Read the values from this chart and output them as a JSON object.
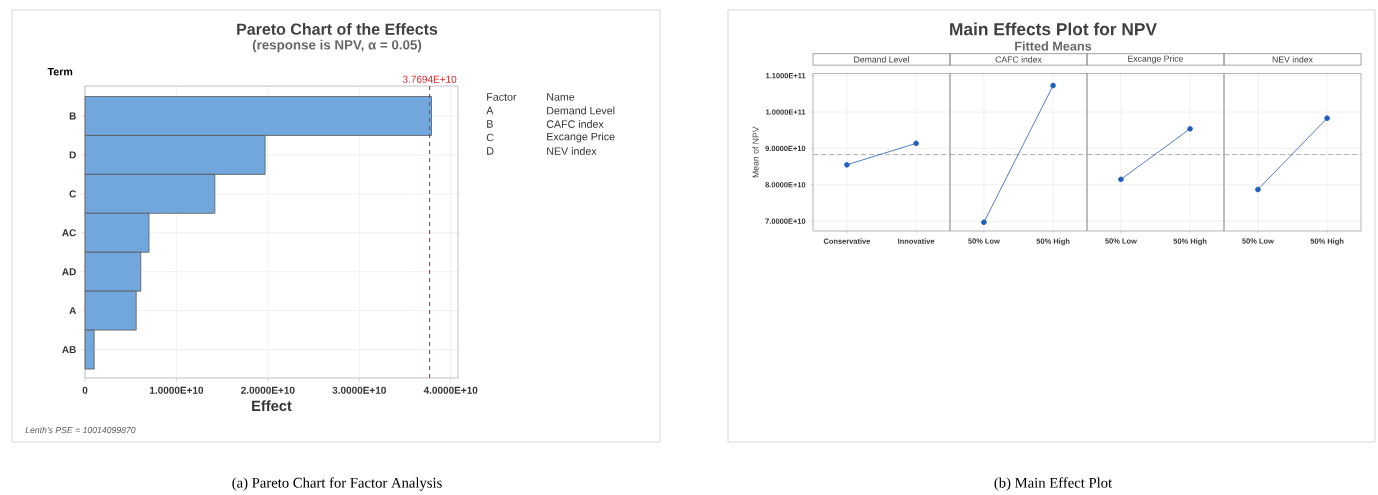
{
  "chart_data": [
    {
      "type": "bar",
      "orientation": "horizontal",
      "title": "Pareto Chart of the Effects",
      "subtitle": "(response is NPV, α = 0.05)",
      "xlabel": "Effect",
      "ylabel": "Term",
      "categories": [
        "B",
        "D",
        "C",
        "AC",
        "AD",
        "A",
        "AB"
      ],
      "values": [
        37900000000,
        19700000000,
        14200000000,
        7000000000,
        6100000000,
        5600000000,
        1000000000
      ],
      "color": "#72a7dd",
      "xlim": [
        0,
        40800000000
      ],
      "xticks": [
        0,
        {
          "value": 10000000000,
          "label": "1.0000E+10"
        },
        {
          "value": 20000000000,
          "label": "2.0000E+10"
        },
        {
          "value": 30000000000,
          "label": "3.0000E+10"
        },
        {
          "value": 40000000000,
          "label": "4.0000E+10"
        }
      ],
      "ref_lines": [
        {
          "axis": "x",
          "value": 37694000000,
          "label": "3.7694E+10",
          "color": "#d62728",
          "line_style": "dashed"
        }
      ],
      "grid": true,
      "annotations": [
        "Factor",
        "Name",
        "A",
        "Demand Level",
        "B",
        "CAFC index",
        "C",
        "Excange Price",
        "D",
        "NEV index",
        "Lenth's PSE = 10014099870",
        "(a) Pareto Chart for Factor Analysis"
      ]
    },
    {
      "type": "line",
      "title": "Demand Level",
      "ylabel": "Mean of NPV",
      "categories": [
        "Conservative",
        "Innovative"
      ],
      "series": [
        {
          "color": "#1f5fbf",
          "values": [
            85500000000,
            91400000000
          ]
        }
      ],
      "ylim": [
        67300000000,
        110600000000
      ],
      "yticks": [
        {
          "value": 70000000000,
          "label": "7.0000E+10"
        },
        {
          "value": 80000000000,
          "label": "8.0000E+10"
        },
        {
          "value": 90000000000,
          "label": "9.0000E+10"
        },
        {
          "value": 100000000000,
          "label": "1.0000E+11"
        },
        {
          "value": 110000000000,
          "label": "1.1000E+11"
        }
      ],
      "ref_lines": [
        {
          "axis": "y",
          "value": 88300000000,
          "color": "#aaaaaa",
          "line_style": "dashed"
        }
      ],
      "grid": true,
      "marker": "circle",
      "annotations": [
        "Main Effects Plot for NPV",
        "Fitted Means",
        "(b) Main Effect Plot"
      ]
    },
    {
      "type": "line",
      "title": "CAFC index",
      "categories": [
        "50% Low",
        "50% High"
      ],
      "series": [
        {
          "color": "#1f5fbf",
          "values": [
            69700000000,
            107300000000
          ]
        }
      ],
      "ylim": [
        67300000000,
        110600000000
      ],
      "yticks": [
        {
          "value": 70000000000,
          "label": null
        },
        {
          "value": 80000000000,
          "label": null
        },
        {
          "value": 90000000000,
          "label": null
        },
        {
          "value": 100000000000,
          "label": null
        },
        {
          "value": 110000000000,
          "label": null
        }
      ],
      "ref_lines": [
        {
          "axis": "y",
          "value": 88300000000,
          "color": "#aaaaaa",
          "line_style": "dashed"
        }
      ],
      "grid": true,
      "marker": "circle",
      "tick_labels": "x"
    },
    {
      "type": "line",
      "title": "Excange Price",
      "categories": [
        "50% Low",
        "50% High"
      ],
      "series": [
        {
          "color": "#1f5fbf",
          "values": [
            81500000000,
            95400000000
          ]
        }
      ],
      "ylim": [
        67300000000,
        110600000000
      ],
      "yticks": [
        {
          "value": 70000000000,
          "label": null
        },
        {
          "value": 80000000000,
          "label": null
        },
        {
          "value": 90000000000,
          "label": null
        },
        {
          "value": 100000000000,
          "label": null
        },
        {
          "value": 110000000000,
          "label": null
        }
      ],
      "ref_lines": [
        {
          "axis": "y",
          "value": 88300000000,
          "color": "#aaaaaa",
          "line_style": "dashed"
        }
      ],
      "grid": true,
      "marker": "circle",
      "tick_labels": "x"
    },
    {
      "type": "line",
      "title": "NEV index",
      "categories": [
        "50% Low",
        "50% High"
      ],
      "series": [
        {
          "color": "#1f5fbf",
          "values": [
            78700000000,
            98300000000
          ]
        }
      ],
      "ylim": [
        67300000000,
        110600000000
      ],
      "yticks": [
        {
          "value": 70000000000,
          "label": null
        },
        {
          "value": 80000000000,
          "label": null
        },
        {
          "value": 90000000000,
          "label": null
        },
        {
          "value": 100000000000,
          "label": null
        },
        {
          "value": 110000000000,
          "label": null
        }
      ],
      "ref_lines": [
        {
          "axis": "y",
          "value": 88300000000,
          "color": "#aaaaaa",
          "line_style": "dashed"
        }
      ],
      "grid": true,
      "marker": "circle",
      "tick_labels": "x"
    }
  ]
}
